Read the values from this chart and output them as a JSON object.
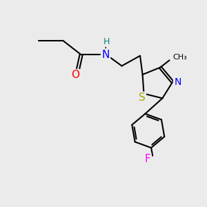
{
  "background_color": "#ebebeb",
  "bond_color": "#000000",
  "atom_colors": {
    "O": "#ff0000",
    "N": "#0000ff",
    "H": "#008080",
    "S": "#aaaa00",
    "F": "#ff00ff",
    "N_ring": "#0000ff",
    "C": "#000000"
  },
  "font_size": 10,
  "figsize": [
    3.0,
    3.0
  ],
  "dpi": 100
}
